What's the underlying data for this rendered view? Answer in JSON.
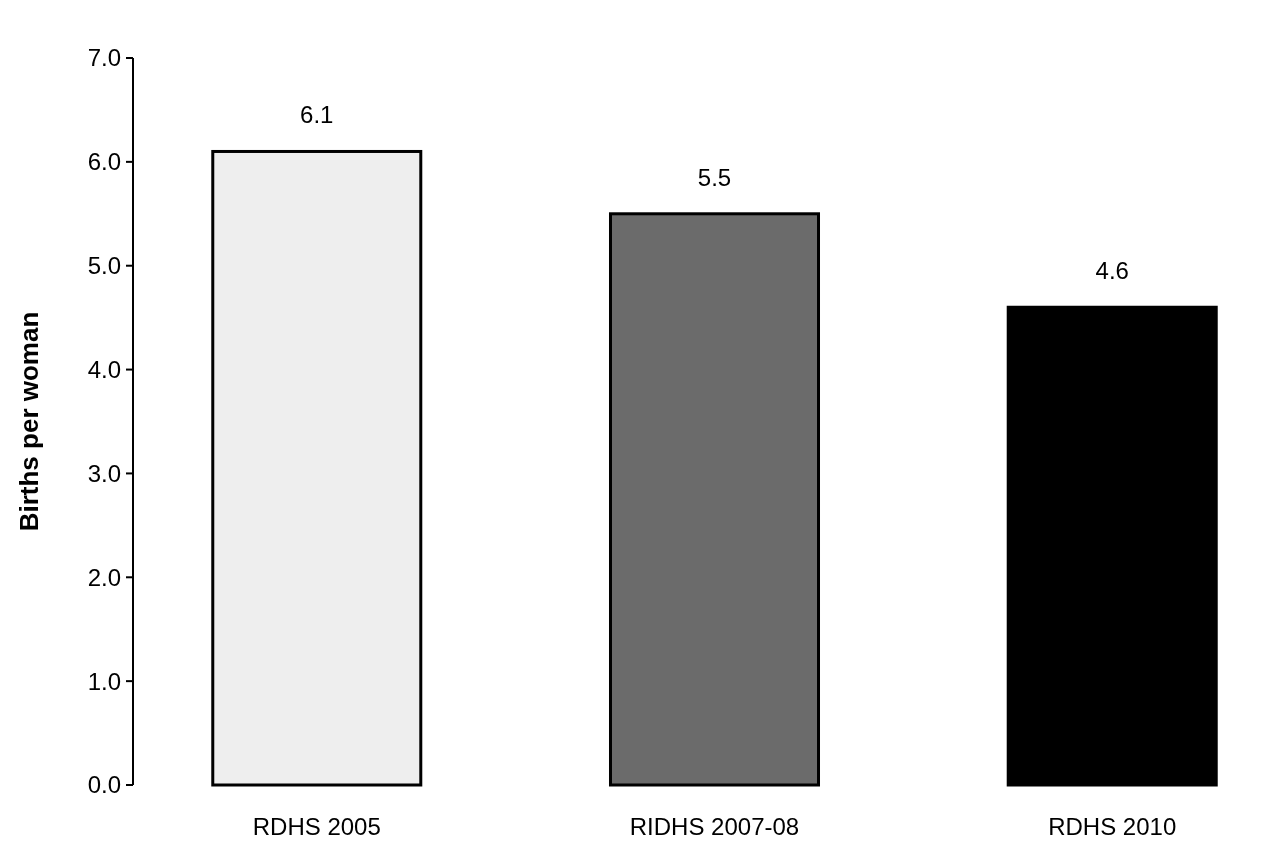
{
  "chart_data": {
    "type": "bar",
    "ylabel": "Births per woman",
    "categories": [
      "RDHS 2005",
      "RIDHS 2007-08",
      "RDHS 2010"
    ],
    "values": [
      6.1,
      5.5,
      4.6
    ],
    "colors": [
      "#eeeeee",
      "#6b6b6b",
      "#000000"
    ],
    "ylim": [
      0,
      7
    ],
    "yticks": [
      {
        "value": 0,
        "label": "0.0"
      },
      {
        "value": 1,
        "label": "1.0"
      },
      {
        "value": 2,
        "label": "2.0"
      },
      {
        "value": 3,
        "label": "3.0"
      },
      {
        "value": 4,
        "label": "4.0"
      },
      {
        "value": 5,
        "label": "5.0"
      },
      {
        "value": 6,
        "label": "6.0"
      },
      {
        "value": 7,
        "label": "7.0"
      }
    ],
    "data_labels": true,
    "grid": false
  }
}
